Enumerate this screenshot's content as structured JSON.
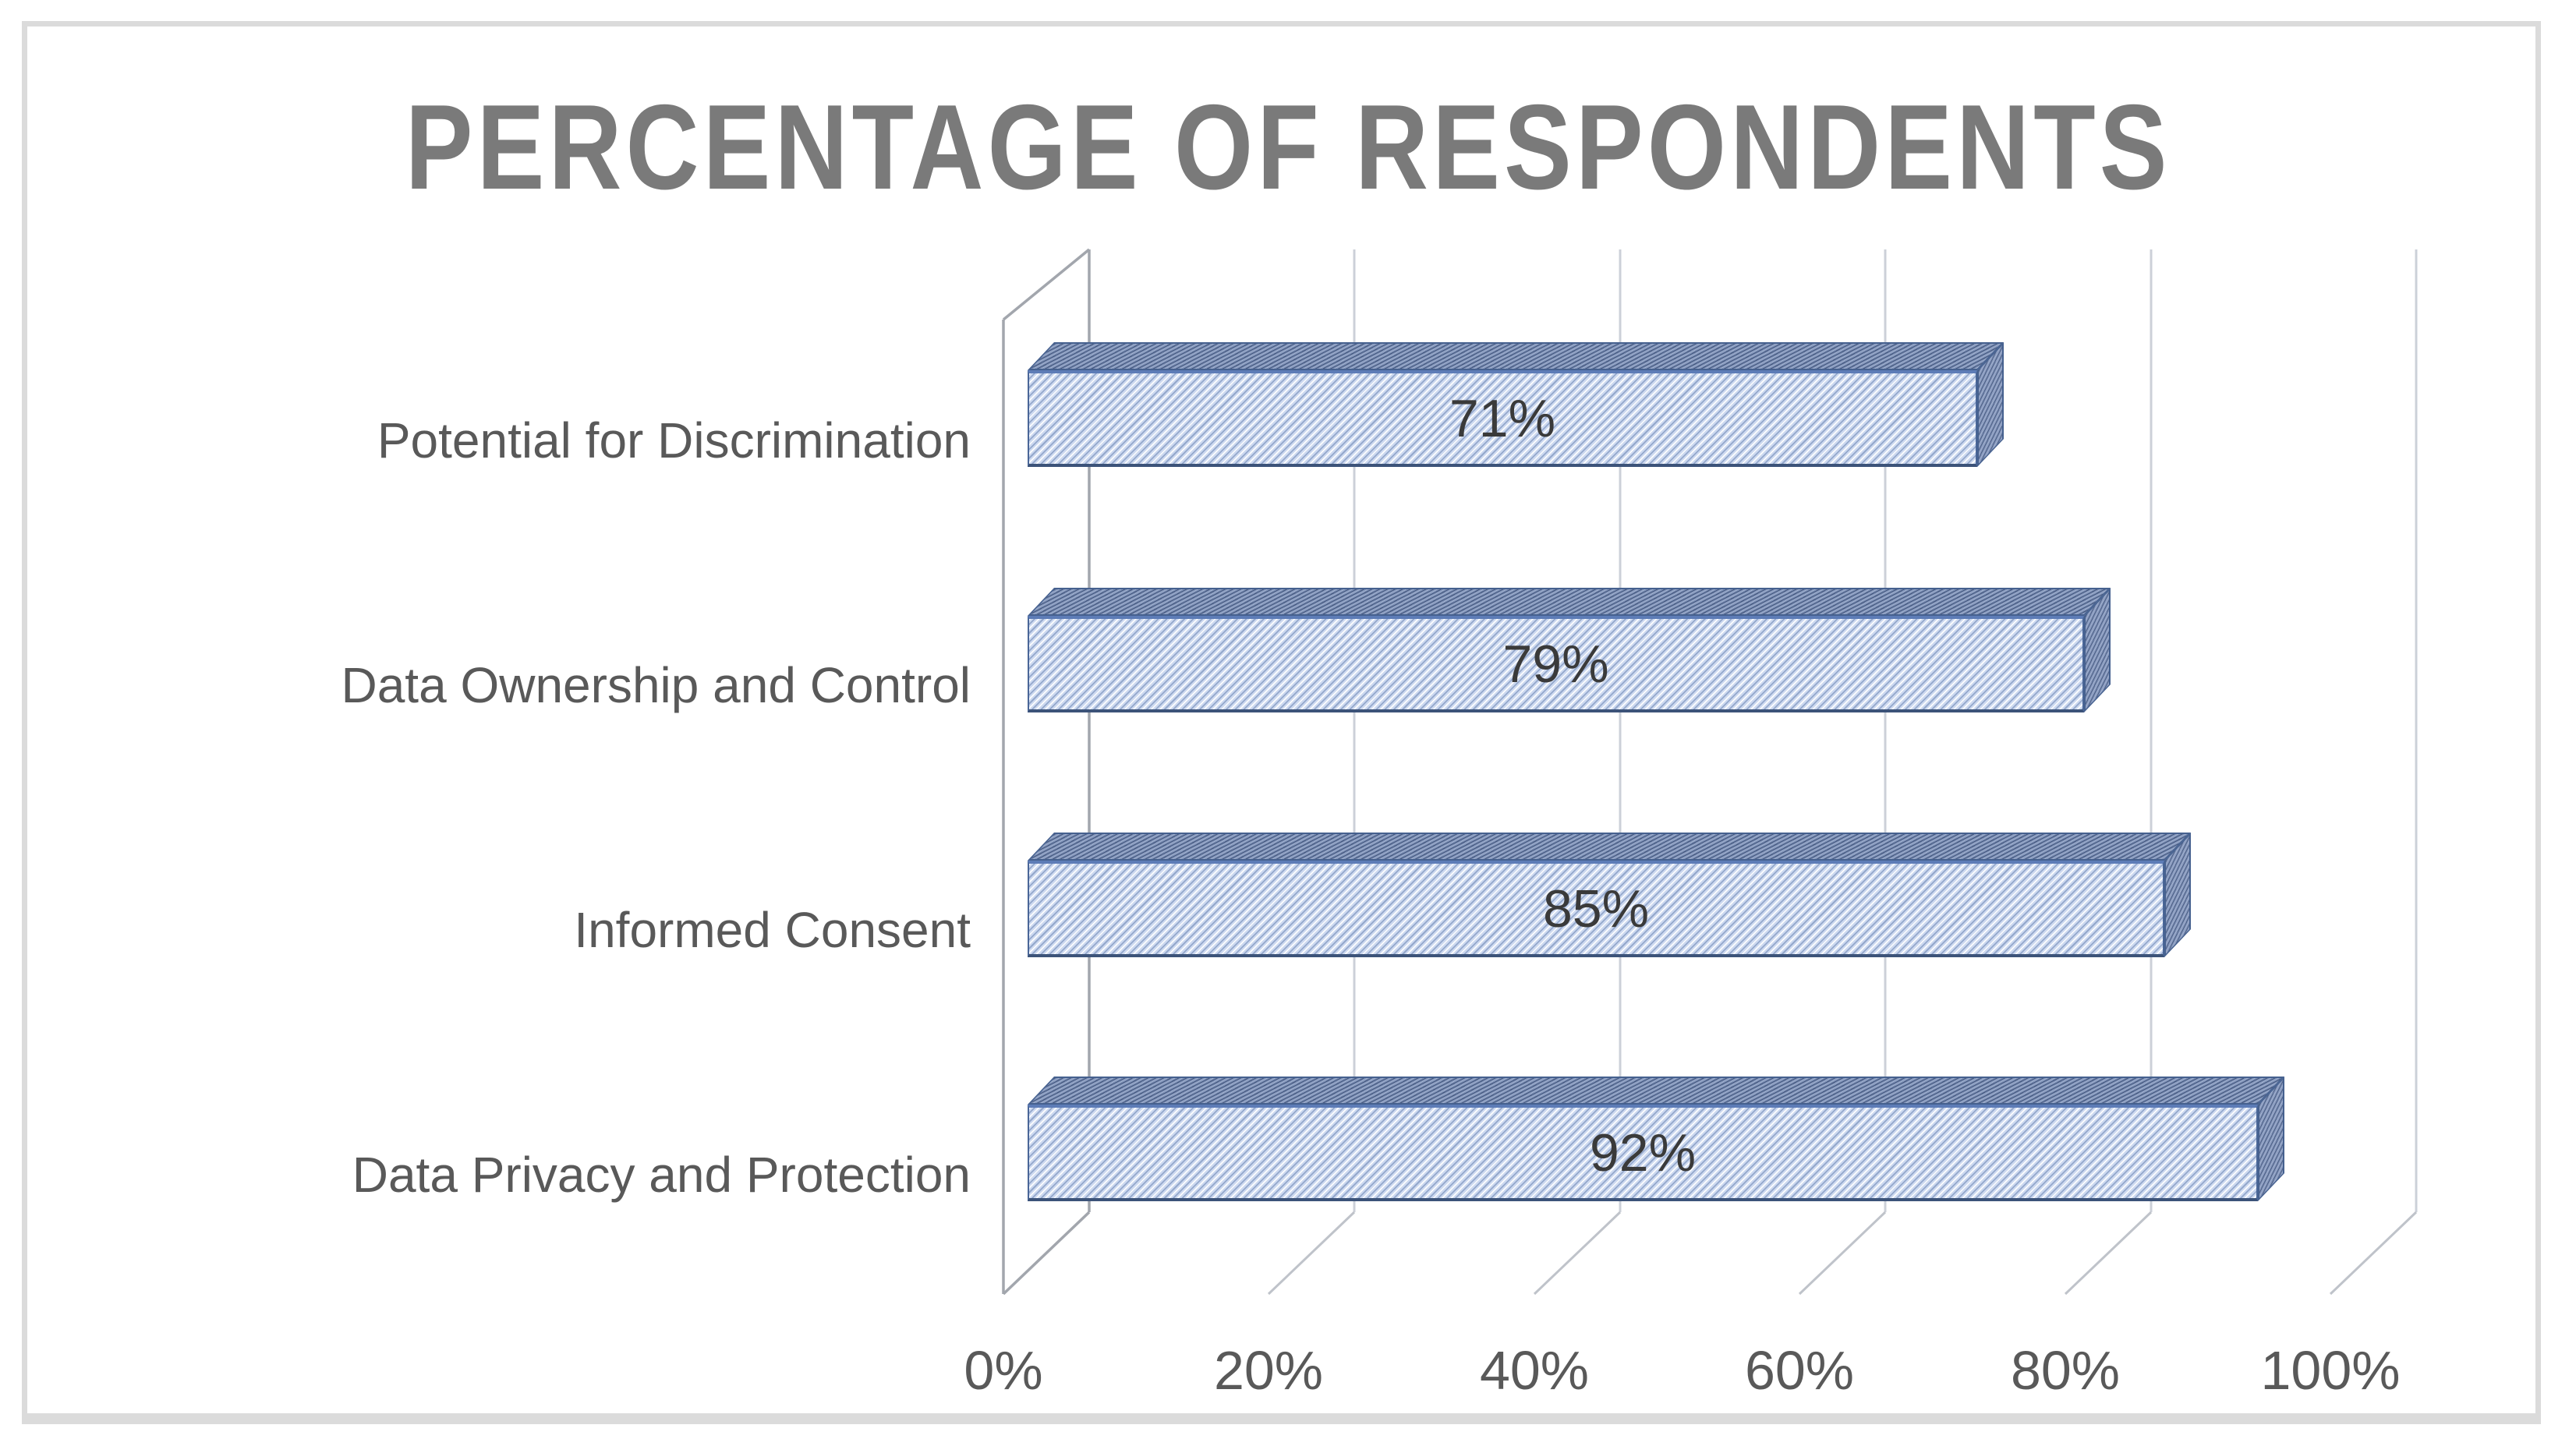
{
  "title": "PERCENTAGE OF RESPONDENTS",
  "chart_data": {
    "type": "bar",
    "orientation": "horizontal",
    "style": "3d-excel",
    "title": "PERCENTAGE OF RESPONDENTS",
    "categories": [
      "Potential for Discrimination",
      "Data Ownership and Control",
      "Informed Consent",
      "Data Privacy and Protection"
    ],
    "values": [
      71,
      79,
      85,
      92
    ],
    "data_labels": [
      "71%",
      "79%",
      "85%",
      "92%"
    ],
    "x_ticks": [
      "0%",
      "20%",
      "40%",
      "60%",
      "80%",
      "100%"
    ],
    "xlim": [
      0,
      100
    ],
    "xlabel": "",
    "ylabel": "",
    "grid": true,
    "legend": false,
    "colors": {
      "bar_front": "#cdd9f0",
      "bar_top": "#7e91b7",
      "bar_side": "#8496bb",
      "bar_border": "#4a6697",
      "hatch_dark": "#3d5e96",
      "title_text": "#7a7a7a",
      "axis_text": "#595959",
      "data_label_text": "#3a3a3a",
      "gridline": "#ccd0d8",
      "axis_line": "#a2a6ad",
      "frame_border": "#dbdbdb"
    }
  }
}
